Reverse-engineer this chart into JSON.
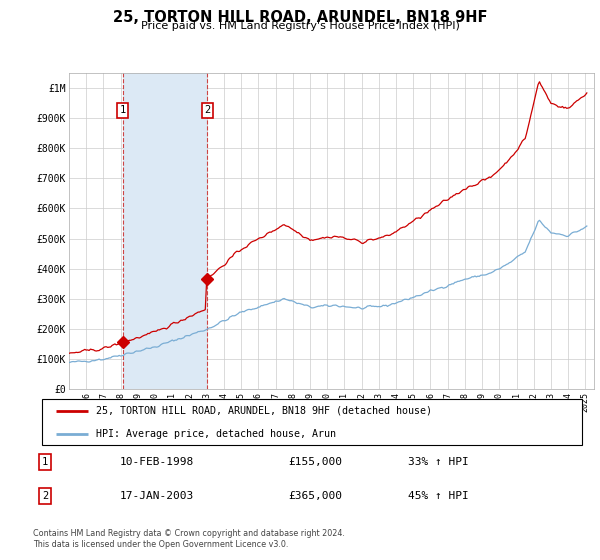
{
  "title": "25, TORTON HILL ROAD, ARUNDEL, BN18 9HF",
  "subtitle": "Price paid vs. HM Land Registry's House Price Index (HPI)",
  "ylabel_ticks": [
    "£0",
    "£100K",
    "£200K",
    "£300K",
    "£400K",
    "£500K",
    "£600K",
    "£700K",
    "£800K",
    "£900K",
    "£1M"
  ],
  "ylim": [
    0,
    1050000
  ],
  "yticks": [
    0,
    100000,
    200000,
    300000,
    400000,
    500000,
    600000,
    700000,
    800000,
    900000,
    1000000
  ],
  "sale1_year": 1998.11,
  "sale1_price": 155000,
  "sale1_label": "1",
  "sale2_year": 2003.04,
  "sale2_price": 365000,
  "sale2_label": "2",
  "line1_color": "#cc0000",
  "line2_color": "#7aadd4",
  "shade_color": "#dce9f5",
  "grid_color": "#cccccc",
  "legend_line1": "25, TORTON HILL ROAD, ARUNDEL, BN18 9HF (detached house)",
  "legend_line2": "HPI: Average price, detached house, Arun",
  "table_entries": [
    {
      "num": "1",
      "date": "10-FEB-1998",
      "price": "£155,000",
      "pct": "33% ↑ HPI"
    },
    {
      "num": "2",
      "date": "17-JAN-2003",
      "price": "£365,000",
      "pct": "45% ↑ HPI"
    }
  ],
  "footer": "Contains HM Land Registry data © Crown copyright and database right 2024.\nThis data is licensed under the Open Government Licence v3.0.",
  "xmin": 1995.0,
  "xmax": 2025.5,
  "xticks": [
    1996,
    1997,
    1998,
    1999,
    2000,
    2001,
    2002,
    2003,
    2004,
    2005,
    2006,
    2007,
    2008,
    2009,
    2010,
    2011,
    2012,
    2013,
    2014,
    2015,
    2016,
    2017,
    2018,
    2019,
    2020,
    2021,
    2022,
    2023,
    2024,
    2025
  ]
}
